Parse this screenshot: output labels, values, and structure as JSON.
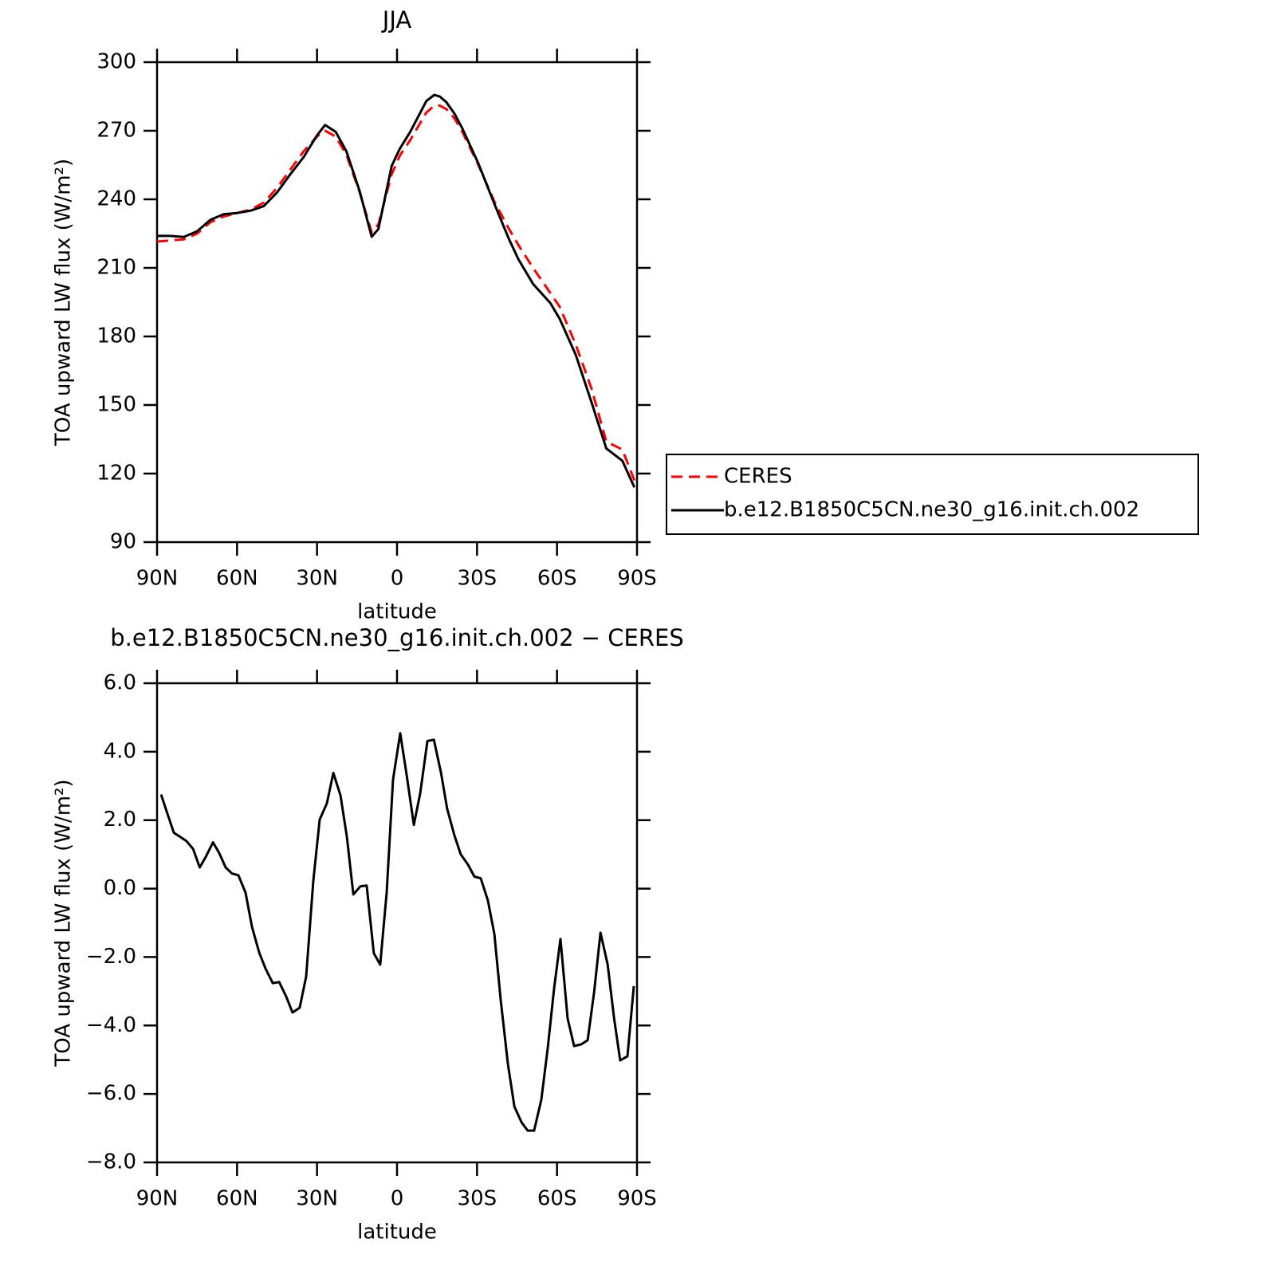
{
  "chart_data": [
    {
      "type": "line",
      "title": "JJA",
      "x_label": "latitude",
      "y_label": "TOA upward LW flux (W/m²)",
      "x": [
        90,
        85,
        80,
        75,
        70,
        65,
        60,
        55,
        50,
        45,
        40,
        35,
        30,
        27,
        23,
        19,
        14,
        9.5,
        7,
        2,
        -1,
        -5,
        -11,
        -14,
        -16,
        -18.5,
        -21.5,
        -24.5,
        -30.5,
        -36.5,
        -42,
        -45.5,
        -51,
        -57.5,
        -61,
        -67,
        -73,
        -78.5,
        -84.5,
        -89
      ],
      "xlim": [
        90,
        -90
      ],
      "xticks": [
        {
          "value": 90,
          "label": "90N"
        },
        {
          "value": 60,
          "label": "60N"
        },
        {
          "value": 30,
          "label": "30N"
        },
        0,
        {
          "value": -30,
          "label": "30S"
        },
        {
          "value": -60,
          "label": "60S"
        },
        {
          "value": -90,
          "label": "90S"
        }
      ],
      "ylim": [
        90,
        300
      ],
      "yticks": [
        90,
        120,
        150,
        180,
        210,
        240,
        270,
        300
      ],
      "legend": "right",
      "series": [
        {
          "name": "CERES",
          "color": "#ff0000",
          "linestyle": "dashed",
          "values": [
            221.5,
            222,
            222.5,
            225,
            230,
            232.5,
            234,
            235.5,
            238.5,
            245,
            253,
            261,
            267.5,
            270,
            267.5,
            259.5,
            243,
            225.5,
            229,
            251,
            259,
            266,
            278,
            281,
            281,
            279.5,
            275.5,
            269.5,
            255,
            239,
            227,
            220,
            210,
            199,
            193,
            176.5,
            157,
            134,
            130.5,
            117
          ]
        },
        {
          "name": "b.e12.B1850C5CN.ne30_g16.init.ch.002",
          "color": "#000000",
          "linestyle": "solid",
          "values": [
            224,
            224,
            223.5,
            226,
            231,
            233.5,
            234,
            235,
            237,
            243,
            251,
            258.5,
            268,
            272.5,
            269.5,
            261,
            243.5,
            223.6,
            227,
            254.6,
            262,
            269.6,
            283,
            285.7,
            285,
            282.5,
            277.6,
            271,
            255.7,
            238,
            222.5,
            213.8,
            203,
            194.6,
            187.7,
            172,
            151,
            131,
            125.6,
            114
          ]
        }
      ]
    },
    {
      "type": "line",
      "title": "b.e12.B1850C5CN.ne30_g16.init.ch.002 − CERES",
      "x_label": "latitude",
      "y_label": "TOA upward LW flux (W/m²)",
      "x": [
        88.5,
        86,
        83.7,
        81.3,
        79,
        76.5,
        74,
        71.7,
        69,
        66.7,
        64.3,
        61.9,
        59.5,
        56.8,
        54.4,
        51.7,
        49.3,
        46.6,
        44.2,
        41.6,
        39.2,
        36.5,
        34.1,
        31.4,
        29,
        26.3,
        23.9,
        21.2,
        18.8,
        16.4,
        13.7,
        11.4,
        8.7,
        6.3,
        3.9,
        1.5,
        -1.2,
        -3.6,
        -6.3,
        -8.7,
        -11.4,
        -13.8,
        -16.5,
        -18.8,
        -21.5,
        -23.9,
        -26.6,
        -29,
        -31.4,
        -34.1,
        -36.5,
        -38.9,
        -41.6,
        -44,
        -46.7,
        -49,
        -51.4,
        -54.1,
        -56.5,
        -58.9,
        -61.3,
        -64,
        -66.4,
        -69.1,
        -71.5,
        -73.9,
        -76.3,
        -79,
        -81.4,
        -83.7,
        -86.4,
        -88.8
      ],
      "xlim": [
        90,
        -90
      ],
      "xticks": [
        {
          "value": 90,
          "label": "90N"
        },
        {
          "value": 60,
          "label": "60N"
        },
        {
          "value": 30,
          "label": "30N"
        },
        0,
        {
          "value": -30,
          "label": "30S"
        },
        {
          "value": -60,
          "label": "60S"
        },
        {
          "value": -90,
          "label": "90S"
        }
      ],
      "ylim": [
        -8,
        6
      ],
      "yticks": [
        {
          "value": -8,
          "label": "−8.0"
        },
        {
          "value": -6,
          "label": "−6.0"
        },
        {
          "value": -4,
          "label": "−4.0"
        },
        {
          "value": -2,
          "label": "−2.0"
        },
        {
          "value": 0,
          "label": "0.0"
        },
        {
          "value": 2,
          "label": "2.0"
        },
        {
          "value": 4,
          "label": "4.0"
        },
        {
          "value": 6,
          "label": "6.0"
        }
      ],
      "series": [
        {
          "color": "#000000",
          "linestyle": "solid",
          "values": [
            2.75,
            2.16,
            1.63,
            1.51,
            1.39,
            1.16,
            0.62,
            0.93,
            1.35,
            1.04,
            0.62,
            0.44,
            0.39,
            -0.12,
            -1.12,
            -1.87,
            -2.34,
            -2.76,
            -2.73,
            -3.15,
            -3.62,
            -3.48,
            -2.57,
            0.23,
            2.02,
            2.49,
            3.38,
            2.72,
            1.51,
            -0.17,
            0.07,
            0.09,
            -1.89,
            -2.22,
            -0.12,
            3.19,
            4.54,
            3.33,
            1.86,
            2.79,
            4.31,
            4.35,
            3.38,
            2.33,
            1.56,
            1.0,
            0.7,
            0.35,
            0.3,
            -0.35,
            -1.33,
            -3.27,
            -5.13,
            -6.37,
            -6.83,
            -7.07,
            -7.07,
            -6.18,
            -4.67,
            -2.92,
            -1.47,
            -3.8,
            -4.6,
            -4.55,
            -4.43,
            -3.03,
            -1.29,
            -2.22,
            -3.78,
            -5.02,
            -4.9,
            -2.85
          ]
        }
      ]
    }
  ]
}
